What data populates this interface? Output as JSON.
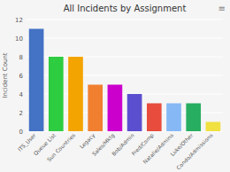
{
  "chart_data": {
    "type": "bar",
    "title": "All Incidents by Assignment",
    "ylabel": "Incident Count",
    "categories": [
      "ITS_User",
      "Queue List",
      "Sun Countries",
      "Legacy",
      "Sales/Mktg",
      "Bob/Admin",
      "Fred/Comp",
      "Natalie/Admins",
      "Luke/Other",
      "Condo/Admissions"
    ],
    "values": [
      11,
      8,
      8,
      5,
      5,
      4,
      3,
      3,
      3,
      1
    ],
    "colors": [
      "#4472c4",
      "#2ecc40",
      "#f4a400",
      "#f08030",
      "#cc00cc",
      "#5b4fcf",
      "#e74c3c",
      "#85b8f5",
      "#27ae60",
      "#f0e040"
    ],
    "ylim": [
      0,
      12
    ],
    "yticks": [
      0,
      2,
      4,
      6,
      8,
      10,
      12
    ],
    "grid": true,
    "annotations": [
      "≡"
    ]
  }
}
